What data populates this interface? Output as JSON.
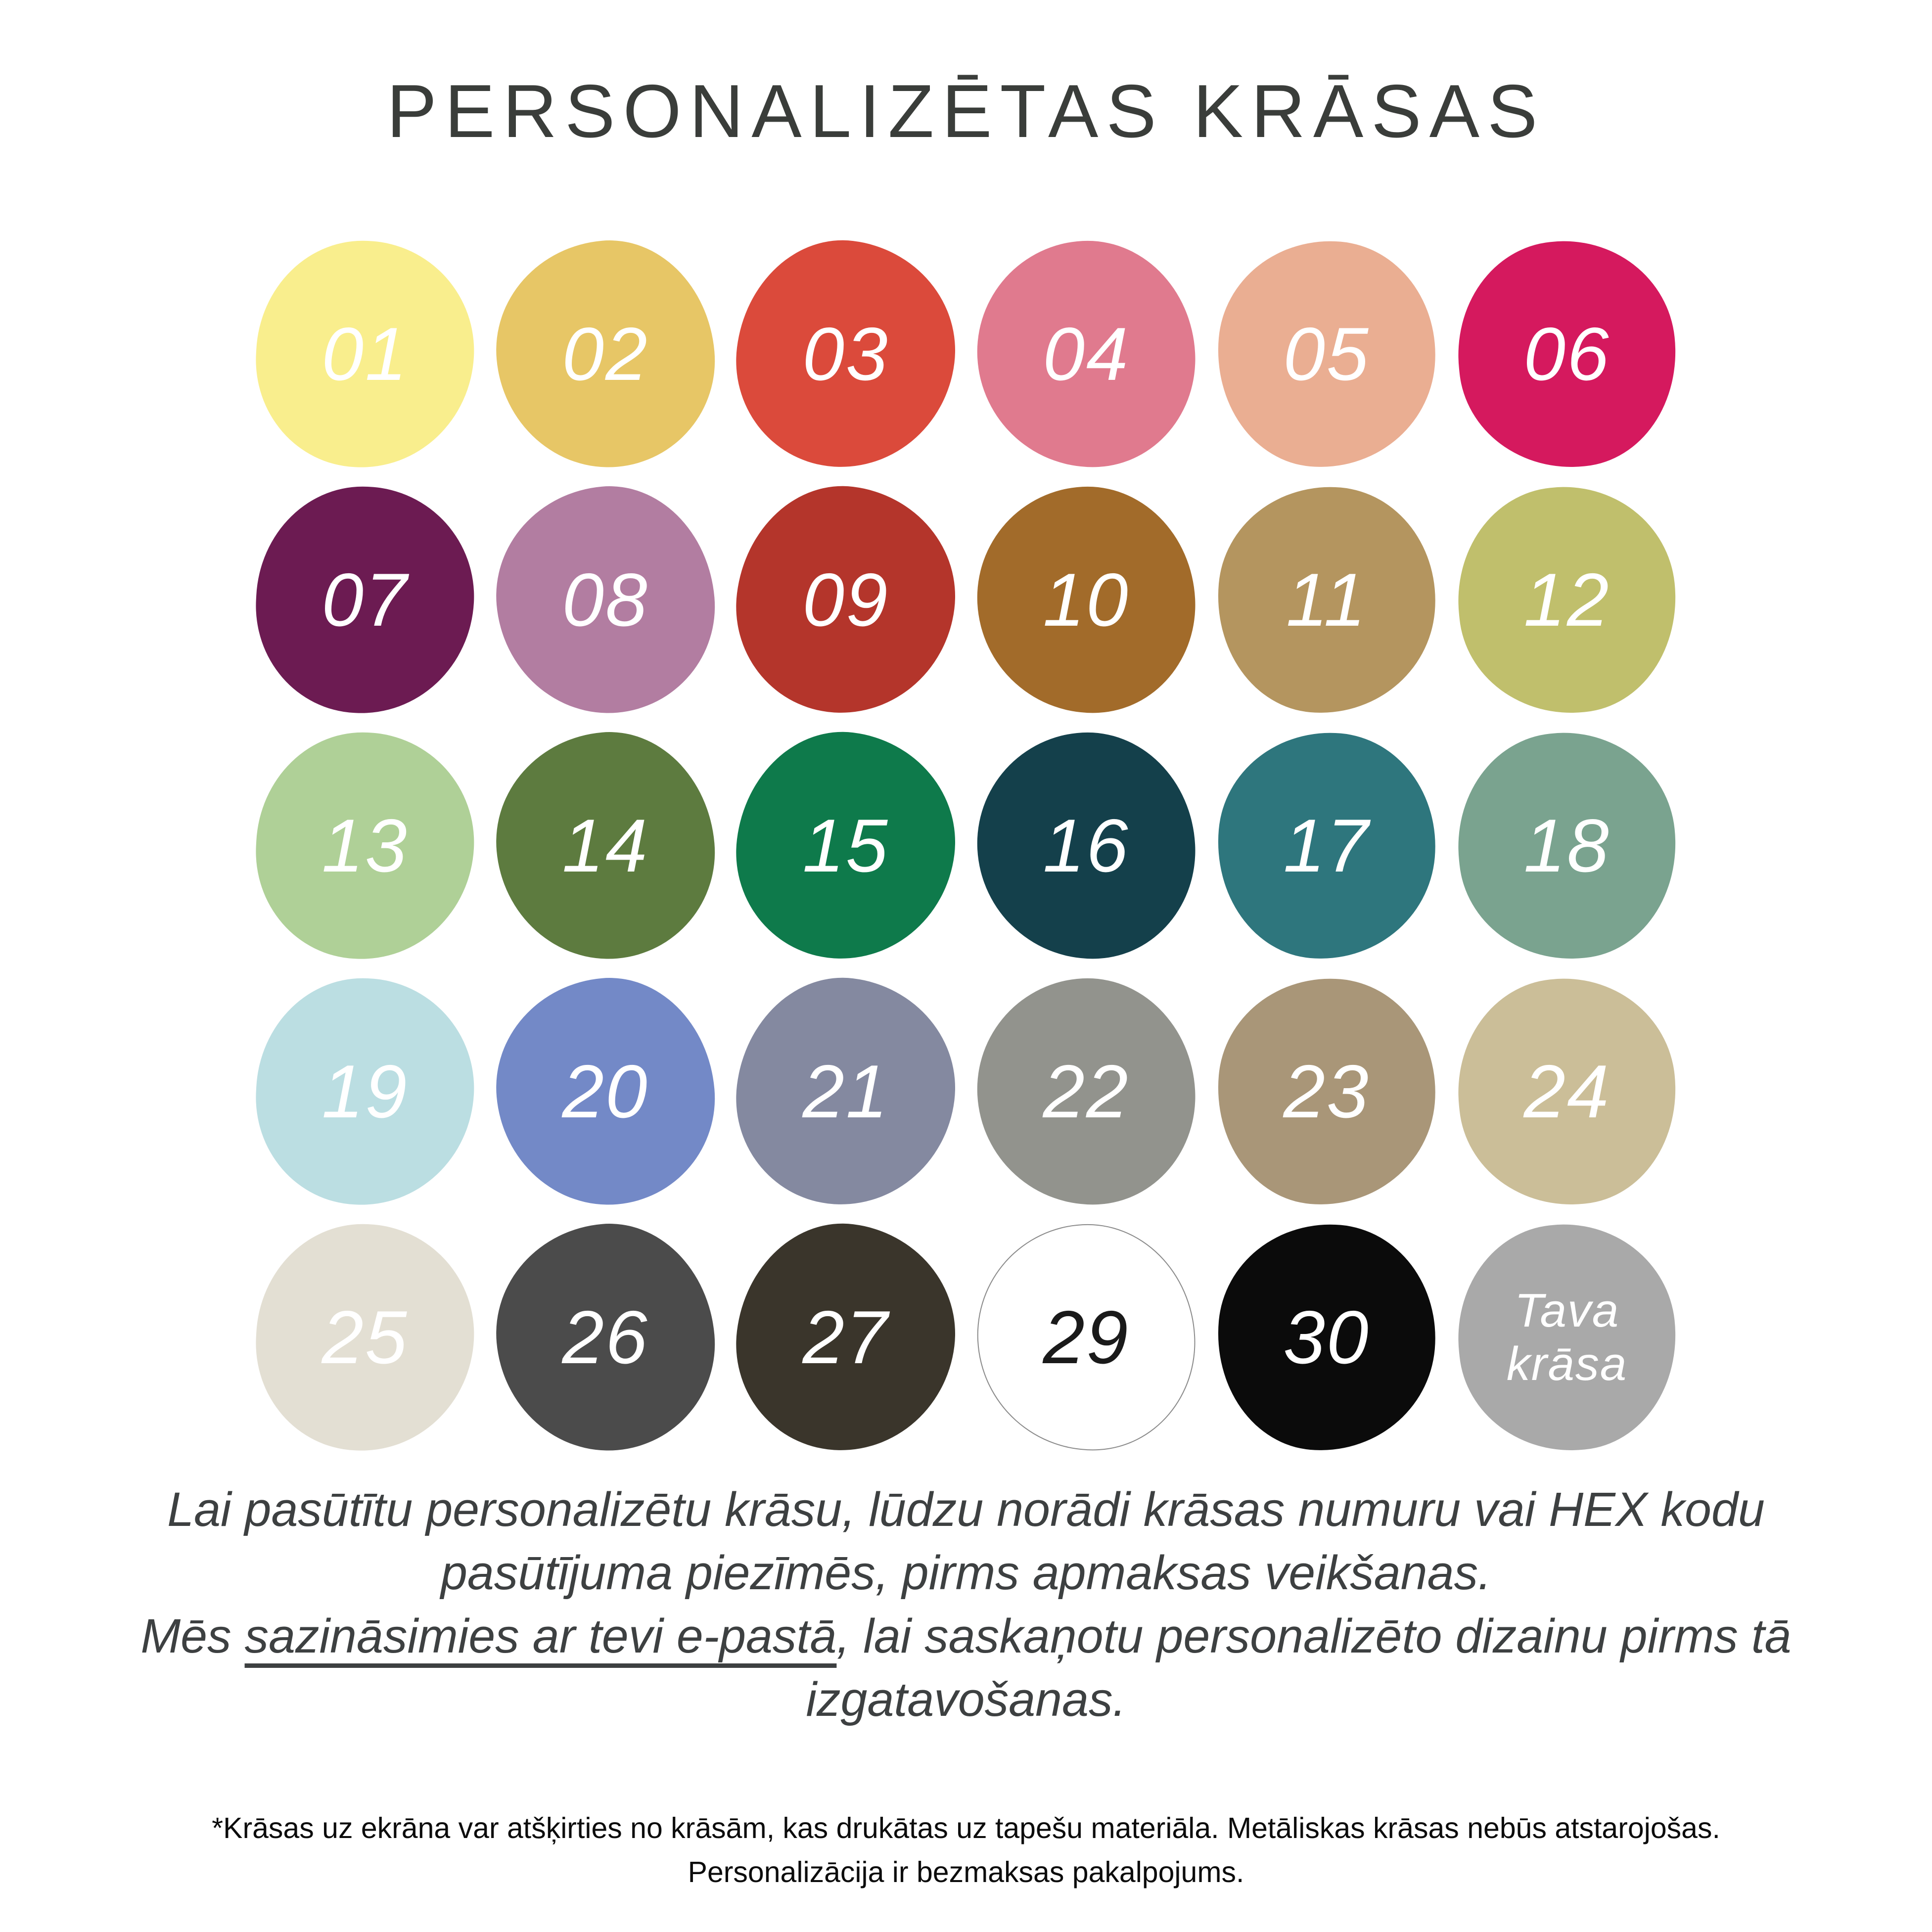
{
  "title": "PERSONALIZĒTAS KRĀSAS",
  "palette": {
    "swatches": [
      {
        "label": "01",
        "color": "#F9EE8D",
        "text_color": "#FFFFFF"
      },
      {
        "label": "02",
        "color": "#E7C666",
        "text_color": "#FFFFFF"
      },
      {
        "label": "03",
        "color": "#DB4A3B",
        "text_color": "#FFFFFF"
      },
      {
        "label": "04",
        "color": "#E07A8E",
        "text_color": "#FFFFFF"
      },
      {
        "label": "05",
        "color": "#EAAE92",
        "text_color": "#FFFFFF"
      },
      {
        "label": "06",
        "color": "#D5195E",
        "text_color": "#FFFFFF"
      },
      {
        "label": "07",
        "color": "#6C1B52",
        "text_color": "#FFFFFF"
      },
      {
        "label": "08",
        "color": "#B27DA1",
        "text_color": "#FFFFFF"
      },
      {
        "label": "09",
        "color": "#B4352B",
        "text_color": "#FFFFFF"
      },
      {
        "label": "10",
        "color": "#A26B2A",
        "text_color": "#FFFFFF"
      },
      {
        "label": "11",
        "color": "#B4955F",
        "text_color": "#FFFFFF"
      },
      {
        "label": "12",
        "color": "#C0BF6C",
        "text_color": "#FFFFFF"
      },
      {
        "label": "13",
        "color": "#AFD097",
        "text_color": "#FFFFFF"
      },
      {
        "label": "14",
        "color": "#5D7B3F",
        "text_color": "#FFFFFF"
      },
      {
        "label": "15",
        "color": "#0E7A4B",
        "text_color": "#FFFFFF"
      },
      {
        "label": "16",
        "color": "#14404B",
        "text_color": "#FFFFFF"
      },
      {
        "label": "17",
        "color": "#2E767D",
        "text_color": "#FFFFFF"
      },
      {
        "label": "18",
        "color": "#7AA38F",
        "text_color": "#FFFFFF"
      },
      {
        "label": "19",
        "color": "#BBDEE2",
        "text_color": "#FFFFFF"
      },
      {
        "label": "20",
        "color": "#7389C7",
        "text_color": "#FFFFFF"
      },
      {
        "label": "21",
        "color": "#8489A0",
        "text_color": "#FFFFFF"
      },
      {
        "label": "22",
        "color": "#92938D",
        "text_color": "#FFFFFF"
      },
      {
        "label": "23",
        "color": "#A99678",
        "text_color": "#FFFFFF"
      },
      {
        "label": "24",
        "color": "#CBBE98",
        "text_color": "#FFFFFF"
      },
      {
        "label": "25",
        "color": "#E3DFD3",
        "text_color": "#FFFFFF"
      },
      {
        "label": "26",
        "color": "#4B4B4B",
        "text_color": "#FFFFFF"
      },
      {
        "label": "27",
        "color": "#3A352B",
        "text_color": "#FFFFFF"
      },
      {
        "label": "29",
        "color": "#FFFFFF",
        "text_color": "#1A1A1A",
        "outline_color": "#8A8A8A"
      },
      {
        "label": "30",
        "color": "#0B0B0B",
        "text_color": "#FFFFFF"
      },
      {
        "label": "Tava\nkrāsa",
        "color": "#A9A9A9",
        "text_color": "#FFFFFF"
      }
    ]
  },
  "description": {
    "sentence1": "Lai pasūtītu personalizētu krāsu, lūdzu norādi krāsas numuru vai HEX kodu pasūtījuma piezīmēs, pirms apmaksas veikšanas.",
    "sentence2_prefix": "Mēs ",
    "sentence2_underlined": "sazināsimies ar tevi e-pastā",
    "sentence2_suffix": ", lai saskaņotu personalizēto dizainu pirms tā izgatavošanas."
  },
  "footnote": {
    "line1": "*Krāsas uz ekrāna var atšķirties no krāsām, kas drukātas uz tapešu materiāla. Metāliskas krāsas nebūs atstarojošas.",
    "line2": "Personalizācija ir bezmaksas pakalpojums."
  }
}
